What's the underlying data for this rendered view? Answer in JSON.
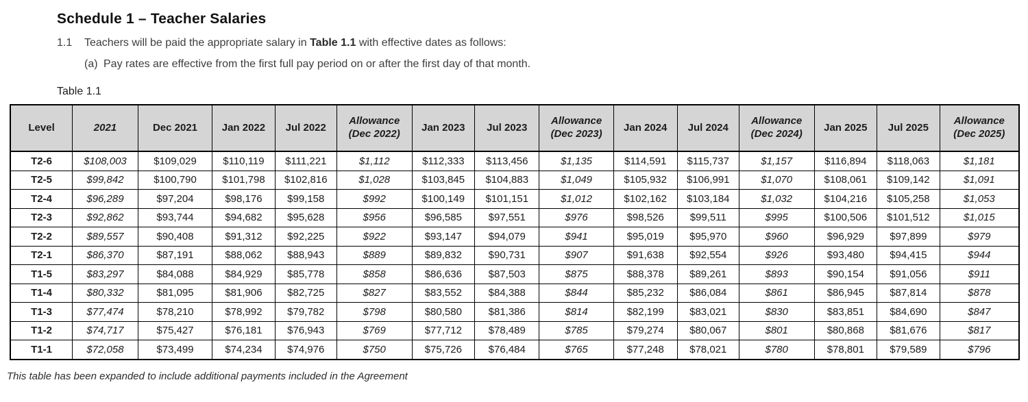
{
  "page": {
    "title": "Schedule 1 – Teacher Salaries",
    "clause_number": "1.1",
    "clause_text_pre": "Teachers will be paid the appropriate salary in ",
    "clause_bold": "Table 1.1",
    "clause_text_post": " with effective dates as follows:",
    "sub_clause_label": "(a)",
    "sub_clause_text": "Pay rates are effective from the first full pay period on or after the first day of that month.",
    "table_label": "Table 1.1",
    "footnote": "This table has been expanded to include additional payments included in the Agreement"
  },
  "table": {
    "header_bg": "#d5d5d5",
    "border_color": "#000000",
    "columns": [
      {
        "label": "Level",
        "italic": false
      },
      {
        "label": "2021",
        "italic": true
      },
      {
        "label": "Dec 2021",
        "italic": false
      },
      {
        "label": "Jan 2022",
        "italic": false
      },
      {
        "label": "Jul 2022",
        "italic": false
      },
      {
        "label": "Allowance\n(Dec 2022)",
        "italic": true
      },
      {
        "label": "Jan 2023",
        "italic": false
      },
      {
        "label": "Jul 2023",
        "italic": false
      },
      {
        "label": "Allowance\n(Dec 2023)",
        "italic": true
      },
      {
        "label": "Jan 2024",
        "italic": false
      },
      {
        "label": "Jul 2024",
        "italic": false
      },
      {
        "label": "Allowance\n(Dec 2024)",
        "italic": true
      },
      {
        "label": "Jan 2025",
        "italic": false
      },
      {
        "label": "Jul 2025",
        "italic": false
      },
      {
        "label": "Allowance\n(Dec 2025)",
        "italic": true
      }
    ],
    "italic_value_columns": [
      0,
      4,
      7,
      10,
      13
    ],
    "rows": [
      {
        "level": "T2-6",
        "values": [
          "$108,003",
          "$109,029",
          "$110,119",
          "$111,221",
          "$1,112",
          "$112,333",
          "$113,456",
          "$1,135",
          "$114,591",
          "$115,737",
          "$1,157",
          "$116,894",
          "$118,063",
          "$1,181"
        ]
      },
      {
        "level": "T2-5",
        "values": [
          "$99,842",
          "$100,790",
          "$101,798",
          "$102,816",
          "$1,028",
          "$103,845",
          "$104,883",
          "$1,049",
          "$105,932",
          "$106,991",
          "$1,070",
          "$108,061",
          "$109,142",
          "$1,091"
        ]
      },
      {
        "level": "T2-4",
        "values": [
          "$96,289",
          "$97,204",
          "$98,176",
          "$99,158",
          "$992",
          "$100,149",
          "$101,151",
          "$1,012",
          "$102,162",
          "$103,184",
          "$1,032",
          "$104,216",
          "$105,258",
          "$1,053"
        ]
      },
      {
        "level": "T2-3",
        "values": [
          "$92,862",
          "$93,744",
          "$94,682",
          "$95,628",
          "$956",
          "$96,585",
          "$97,551",
          "$976",
          "$98,526",
          "$99,511",
          "$995",
          "$100,506",
          "$101,512",
          "$1,015"
        ]
      },
      {
        "level": "T2-2",
        "values": [
          "$89,557",
          "$90,408",
          "$91,312",
          "$92,225",
          "$922",
          "$93,147",
          "$94,079",
          "$941",
          "$95,019",
          "$95,970",
          "$960",
          "$96,929",
          "$97,899",
          "$979"
        ]
      },
      {
        "level": "T2-1",
        "values": [
          "$86,370",
          "$87,191",
          "$88,062",
          "$88,943",
          "$889",
          "$89,832",
          "$90,731",
          "$907",
          "$91,638",
          "$92,554",
          "$926",
          "$93,480",
          "$94,415",
          "$944"
        ]
      },
      {
        "level": "T1-5",
        "values": [
          "$83,297",
          "$84,088",
          "$84,929",
          "$85,778",
          "$858",
          "$86,636",
          "$87,503",
          "$875",
          "$88,378",
          "$89,261",
          "$893",
          "$90,154",
          "$91,056",
          "$911"
        ]
      },
      {
        "level": "T1-4",
        "values": [
          "$80,332",
          "$81,095",
          "$81,906",
          "$82,725",
          "$827",
          "$83,552",
          "$84,388",
          "$844",
          "$85,232",
          "$86,084",
          "$861",
          "$86,945",
          "$87,814",
          "$878"
        ]
      },
      {
        "level": "T1-3",
        "values": [
          "$77,474",
          "$78,210",
          "$78,992",
          "$79,782",
          "$798",
          "$80,580",
          "$81,386",
          "$814",
          "$82,199",
          "$83,021",
          "$830",
          "$83,851",
          "$84,690",
          "$847"
        ]
      },
      {
        "level": "T1-2",
        "values": [
          "$74,717",
          "$75,427",
          "$76,181",
          "$76,943",
          "$769",
          "$77,712",
          "$78,489",
          "$785",
          "$79,274",
          "$80,067",
          "$801",
          "$80,868",
          "$81,676",
          "$817"
        ]
      },
      {
        "level": "T1-1",
        "values": [
          "$72,058",
          "$73,499",
          "$74,234",
          "$74,976",
          "$750",
          "$75,726",
          "$76,484",
          "$765",
          "$77,248",
          "$78,021",
          "$780",
          "$78,801",
          "$79,589",
          "$796"
        ]
      }
    ]
  }
}
